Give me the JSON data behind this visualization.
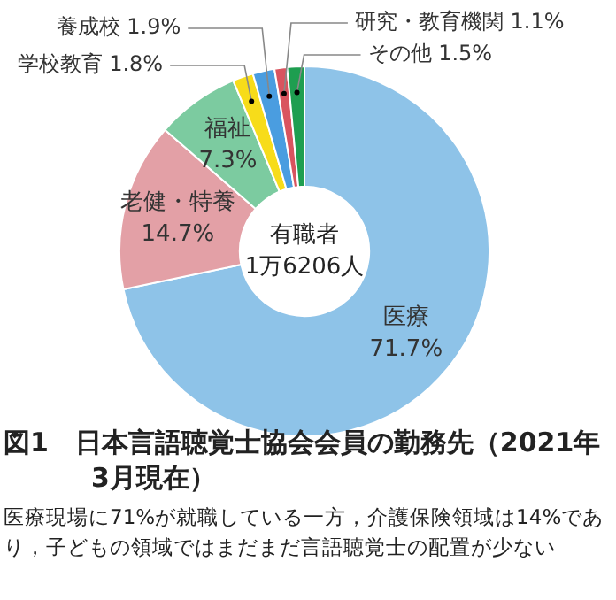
{
  "chart_data": {
    "type": "donut",
    "title": "図1　日本言語聴覚士協会会員の勤務先（2021年3月現在）",
    "categories": [
      "医療",
      "老健・特養",
      "福祉",
      "学校教育",
      "養成校",
      "研究・教育機関",
      "その他"
    ],
    "values": [
      71.7,
      14.7,
      7.3,
      1.8,
      1.9,
      1.1,
      1.5
    ],
    "value_labels": [
      "71.7%",
      "14.7%",
      "7.3%",
      "1.8%",
      "1.9%",
      "1.1%",
      "1.5%"
    ],
    "colors": [
      "#8ec3e8",
      "#e3a0a6",
      "#7ccba0",
      "#f7dc1a",
      "#4a9de0",
      "#d9545f",
      "#1e9e50"
    ],
    "annotations": [
      "有職者\n1万6206人",
      "医療現場に71%が就職している一方，介護保険領域は14%であり，子どもの領域ではまだまだ言語聴覚士の配置が少ない"
    ],
    "legend": false
  }
}
